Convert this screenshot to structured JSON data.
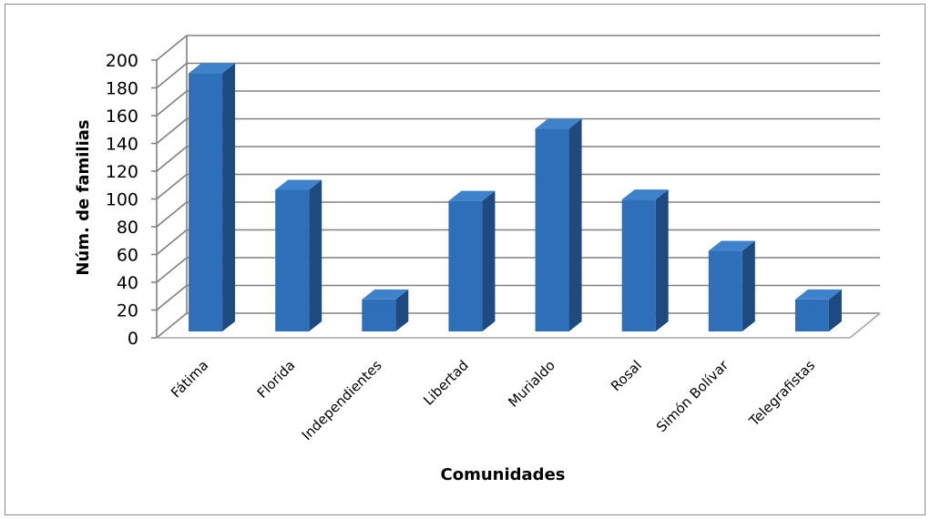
{
  "chart_data": {
    "type": "bar",
    "categories": [
      "Fátima",
      "Florida",
      "Independientes",
      "Libertad",
      "Murialdo",
      "Rosal",
      "Simón Bolívar",
      "Telegrafistas"
    ],
    "values": [
      186,
      102,
      23,
      94,
      146,
      95,
      58,
      23
    ],
    "xlabel": "Comunidades",
    "ylabel": "Núm. de familias",
    "ylim": [
      0,
      200
    ],
    "yticks": [
      0,
      20,
      40,
      60,
      80,
      100,
      120,
      140,
      160,
      180,
      200
    ],
    "grid": true,
    "legend": "none",
    "colors": {
      "bar_front": "#2e6fba",
      "bar_side": "#1f4a7f",
      "bar_top": "#3f82cc",
      "gridline": "#808080",
      "floor": "#a6a6a6"
    }
  }
}
